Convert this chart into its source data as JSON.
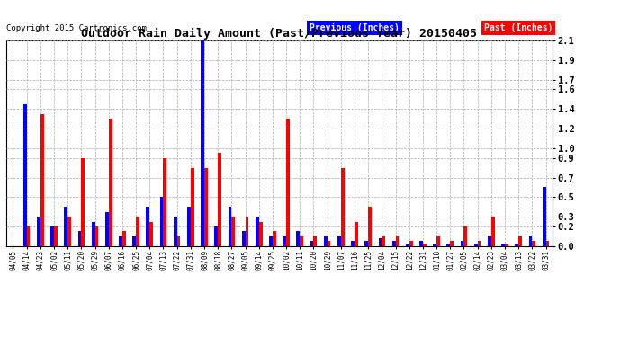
{
  "title": "Outdoor Rain Daily Amount (Past/Previous Year) 20150405",
  "copyright": "Copyright 2015 Cartronics.com",
  "legend_prev": "Previous (Inches)",
  "legend_past": "Past (Inches)",
  "legend_prev_color": "#0000FF",
  "legend_past_color": "#FF0000",
  "yticks": [
    0.0,
    0.2,
    0.3,
    0.5,
    0.7,
    0.9,
    1.0,
    1.2,
    1.4,
    1.6,
    1.7,
    1.9,
    2.1
  ],
  "ylim": [
    0,
    2.1
  ],
  "background_color": "#ffffff",
  "grid_color": "#aaaaaa",
  "x_labels": [
    "04/05",
    "04/14",
    "04/23",
    "05/02",
    "05/11",
    "05/20",
    "05/29",
    "06/07",
    "06/16",
    "06/25",
    "07/04",
    "07/13",
    "07/22",
    "07/31",
    "08/09",
    "08/18",
    "08/27",
    "09/05",
    "09/14",
    "09/25",
    "10/02",
    "10/11",
    "10/20",
    "10/29",
    "11/07",
    "11/16",
    "11/25",
    "12/04",
    "12/15",
    "12/22",
    "12/31",
    "01/18",
    "01/27",
    "02/05",
    "02/14",
    "02/23",
    "03/04",
    "03/13",
    "03/22",
    "03/31"
  ],
  "prev_values": [
    0.0,
    1.45,
    0.3,
    0.2,
    0.4,
    0.15,
    0.25,
    0.35,
    0.1,
    0.1,
    0.4,
    0.5,
    0.3,
    0.4,
    2.1,
    0.2,
    0.4,
    0.15,
    0.3,
    0.1,
    0.1,
    0.15,
    0.05,
    0.1,
    0.1,
    0.05,
    0.05,
    0.08,
    0.05,
    0.02,
    0.05,
    0.02,
    0.02,
    0.05,
    0.02,
    0.1,
    0.02,
    0.02,
    0.1,
    0.6
  ],
  "past_values": [
    0.0,
    0.2,
    1.35,
    0.2,
    0.3,
    0.9,
    0.2,
    1.3,
    0.15,
    0.3,
    0.25,
    0.9,
    0.1,
    0.8,
    0.8,
    0.95,
    0.3,
    0.3,
    0.25,
    0.15,
    1.3,
    0.1,
    0.1,
    0.05,
    0.8,
    0.25,
    0.4,
    0.1,
    0.1,
    0.05,
    0.02,
    0.1,
    0.05,
    0.2,
    0.05,
    0.3,
    0.02,
    0.1,
    0.05,
    0.05
  ]
}
